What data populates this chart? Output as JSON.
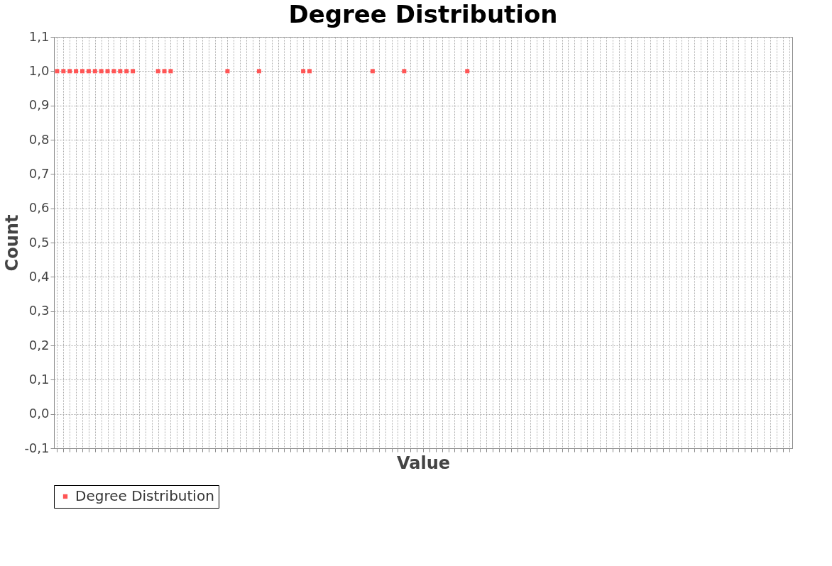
{
  "chart_data": {
    "type": "scatter",
    "title": "Degree Distribution",
    "xlabel": "Value",
    "ylabel": "Count",
    "categories": [
      null,
      null,
      null,
      null,
      null,
      null,
      null,
      null,
      null,
      null,
      null,
      null,
      null,
      null,
      null,
      null,
      null,
      null,
      null,
      null,
      null,
      null,
      null,
      null,
      null,
      null,
      null,
      null,
      null,
      null,
      null,
      null,
      null,
      null,
      null,
      null,
      null,
      null,
      null,
      null,
      null,
      null,
      null,
      null,
      null,
      null,
      null,
      null,
      null,
      null,
      null,
      null,
      null,
      null,
      null,
      null,
      null,
      null,
      null,
      null,
      null,
      null,
      null,
      null,
      null,
      null,
      null,
      null,
      null,
      null,
      null,
      null,
      null,
      null,
      null,
      null,
      null,
      null,
      null,
      null,
      null,
      null,
      null,
      null,
      null,
      null,
      null,
      null,
      null,
      null,
      null,
      null,
      null,
      null,
      null,
      null,
      null,
      null,
      null,
      null,
      null,
      null,
      null,
      null,
      null,
      null,
      null,
      null,
      null,
      null,
      null,
      null,
      null,
      null,
      null,
      null,
      null
    ],
    "series": [
      {
        "name": "Degree Distribution",
        "color": "#ff5555",
        "values": [
          1.0,
          1.0,
          1.0,
          1.0,
          1.0,
          1.0,
          1.0,
          1.0,
          1.0,
          1.0,
          1.0,
          1.0,
          1.0,
          null,
          null,
          null,
          1.0,
          1.0,
          1.0,
          null,
          null,
          null,
          null,
          null,
          null,
          null,
          null,
          1.0,
          null,
          null,
          null,
          null,
          1.0,
          null,
          null,
          null,
          null,
          null,
          null,
          1.0,
          1.0,
          null,
          null,
          null,
          null,
          null,
          null,
          null,
          null,
          null,
          1.0,
          null,
          null,
          null,
          null,
          1.0,
          null,
          null,
          null,
          null,
          null,
          null,
          null,
          null,
          null,
          1.0,
          null,
          null,
          null,
          null,
          null,
          null,
          null,
          null,
          null,
          null,
          null,
          null,
          null,
          null,
          null,
          null,
          null,
          null,
          null,
          null,
          null,
          null,
          null,
          null,
          null,
          null,
          null,
          null,
          null,
          null,
          null,
          null,
          null,
          null,
          null,
          null,
          null,
          null,
          null,
          null,
          null,
          null,
          null,
          null,
          null,
          null,
          null,
          null,
          null,
          null,
          null
        ]
      }
    ],
    "ylim": [
      -0.1,
      1.1
    ],
    "yticks": [
      {
        "value": -0.1,
        "label": "-0,1"
      },
      {
        "value": 0.0,
        "label": "0,0"
      },
      {
        "value": 0.1,
        "label": "0,1"
      },
      {
        "value": 0.2,
        "label": "0,2"
      },
      {
        "value": 0.3,
        "label": "0,3"
      },
      {
        "value": 0.4,
        "label": "0,4"
      },
      {
        "value": 0.5,
        "label": "0,5"
      },
      {
        "value": 0.6,
        "label": "0,6"
      },
      {
        "value": 0.7,
        "label": "0,7"
      },
      {
        "value": 0.8,
        "label": "0,8"
      },
      {
        "value": 0.9,
        "label": "0,9"
      },
      {
        "value": 1.0,
        "label": "1,0"
      },
      {
        "value": 1.1,
        "label": "1,1"
      }
    ],
    "grid": true,
    "legend": "bottom",
    "marker": "square",
    "tick_labels": "y"
  }
}
